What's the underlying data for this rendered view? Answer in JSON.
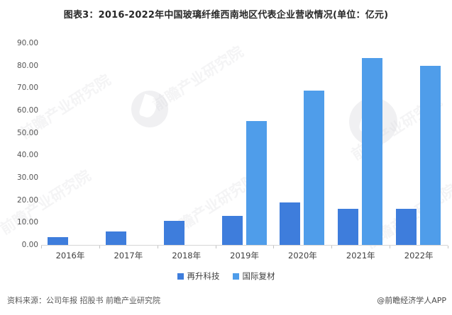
{
  "chart_data": {
    "type": "bar",
    "title": "图表3：2016-2022年中国玻璃纤维西南地区代表企业营收情况(单位：亿元)",
    "categories": [
      "2016年",
      "2017年",
      "2018年",
      "2019年",
      "2020年",
      "2021年",
      "2022年"
    ],
    "series": [
      {
        "name": "再升科技",
        "color": "#3E7DDC",
        "values": [
          3.5,
          6.1,
          10.8,
          13.0,
          18.9,
          16.0,
          16.0
        ]
      },
      {
        "name": "国际复材",
        "color": "#4F9DEA",
        "values": [
          null,
          null,
          null,
          55.2,
          69.0,
          83.5,
          79.8
        ]
      }
    ],
    "xlabel": "",
    "ylabel": "",
    "ylim": [
      0,
      90
    ],
    "ytick_step": 10,
    "ytick_labels": [
      "0.00",
      "10.00",
      "20.00",
      "30.00",
      "40.00",
      "50.00",
      "60.00",
      "70.00",
      "80.00",
      "90.00"
    ],
    "grid": false,
    "legend_position": "bottom",
    "unit": "亿元"
  },
  "footer": {
    "source": "资料来源：公司年报 招股书 前瞻产业研究院",
    "credit": "@前瞻经济学人APP"
  },
  "watermark": {
    "text": "前瞻产业研究院"
  }
}
